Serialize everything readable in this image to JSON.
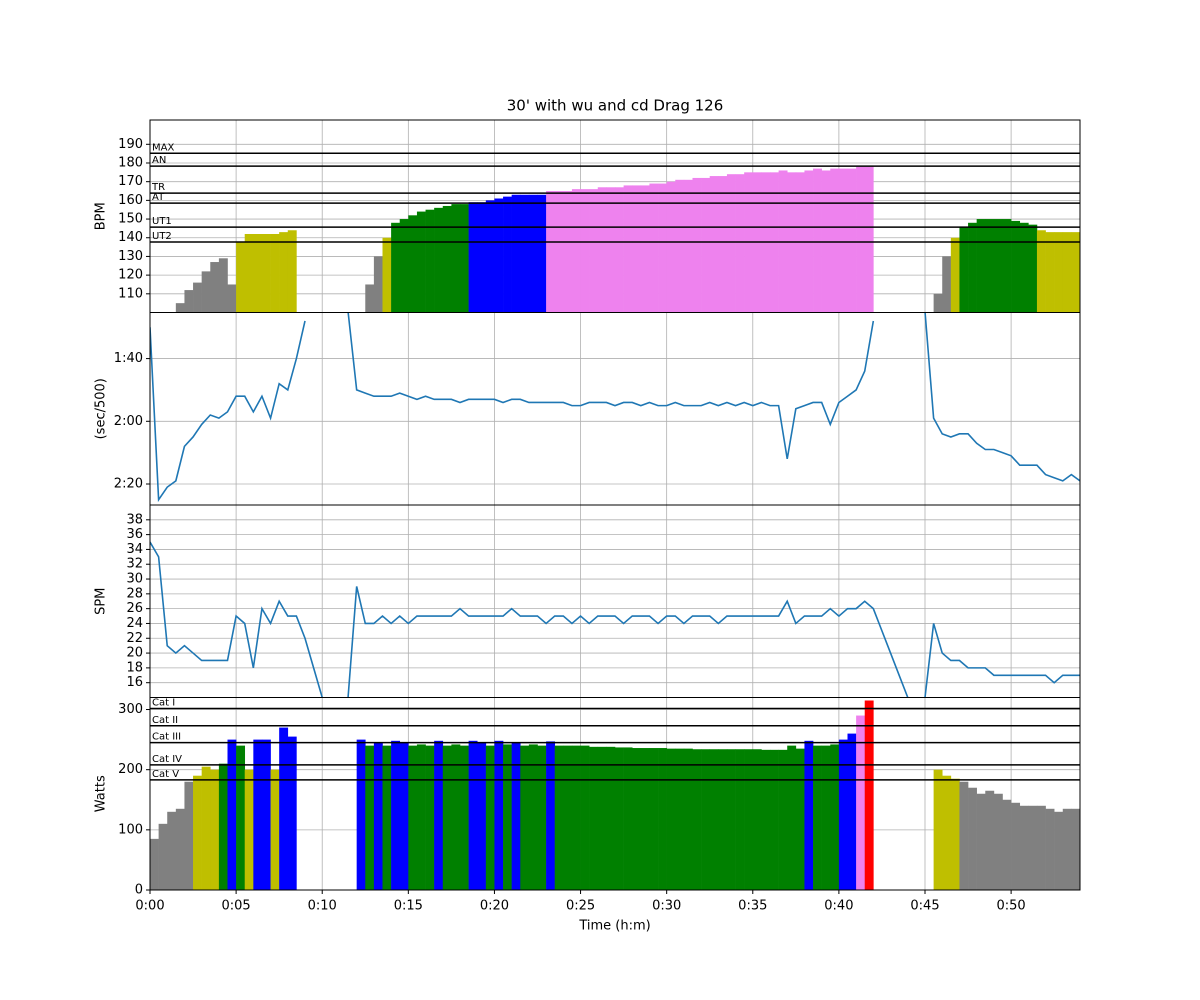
{
  "chart_data": {
    "type": "multi",
    "title": "30' with wu and cd Drag 126",
    "xlabel": "Time (h:m)",
    "xlim": [
      0,
      54
    ],
    "xticks": [
      {
        "value": 0,
        "label": "0:00"
      },
      {
        "value": 5,
        "label": "0:05"
      },
      {
        "value": 10,
        "label": "0:10"
      },
      {
        "value": 15,
        "label": "0:15"
      },
      {
        "value": 20,
        "label": "0:20"
      },
      {
        "value": 25,
        "label": "0:25"
      },
      {
        "value": 30,
        "label": "0:30"
      },
      {
        "value": 35,
        "label": "0:35"
      },
      {
        "value": 40,
        "label": "0:40"
      },
      {
        "value": 45,
        "label": "0:45"
      },
      {
        "value": 50,
        "label": "0:50"
      }
    ],
    "grid": true,
    "x": [
      0,
      0.5,
      1,
      1.5,
      2,
      2.5,
      3,
      3.5,
      4,
      4.5,
      5,
      5.5,
      6,
      6.5,
      7,
      7.5,
      8,
      8.5,
      9,
      9.5,
      10,
      10.5,
      11,
      11.5,
      12,
      12.5,
      13,
      13.5,
      14,
      14.5,
      15,
      15.5,
      16,
      16.5,
      17,
      17.5,
      18,
      18.5,
      19,
      19.5,
      20,
      20.5,
      21,
      21.5,
      22,
      22.5,
      23,
      23.5,
      24,
      24.5,
      25,
      25.5,
      26,
      26.5,
      27,
      27.5,
      28,
      28.5,
      29,
      29.5,
      30,
      30.5,
      31,
      31.5,
      32,
      32.5,
      33,
      33.5,
      34,
      34.5,
      35,
      35.5,
      36,
      36.5,
      37,
      37.5,
      38,
      38.5,
      39,
      39.5,
      40,
      40.5,
      41,
      41.5,
      42,
      42.5,
      43,
      43.5,
      44,
      44.5,
      45,
      45.5,
      46,
      46.5,
      47,
      47.5,
      48,
      48.5,
      49,
      49.5,
      50,
      50.5,
      51,
      51.5,
      52,
      52.5,
      53,
      53.5,
      54
    ],
    "panels": [
      {
        "type": "bar",
        "ylabel": "BPM",
        "ylim": [
          100,
          203
        ],
        "yticks": [
          110,
          120,
          130,
          140,
          150,
          160,
          170,
          180,
          190
        ],
        "zones": [
          {
            "label": "UT2",
            "value": 137.7
          },
          {
            "label": "UT1",
            "value": 145.7
          },
          {
            "label": "AT",
            "value": 158.5
          },
          {
            "label": "TR",
            "value": 163.9
          },
          {
            "label": "AN",
            "value": 178.3
          },
          {
            "label": "MAX",
            "value": 185.2
          }
        ],
        "zone_colors": [
          "#808080",
          "#bfbf00",
          "#008000",
          "#0000ff",
          "#ee82ee",
          "#ff0000",
          "#ff0000"
        ],
        "values": [
          null,
          null,
          null,
          105,
          112,
          116,
          122,
          127,
          129,
          115,
          138,
          142,
          142,
          142,
          142,
          143,
          144,
          null,
          null,
          null,
          null,
          null,
          null,
          null,
          null,
          115,
          130,
          140,
          148,
          150,
          152,
          154,
          155,
          156,
          157,
          158,
          158,
          159,
          159,
          160,
          161,
          162,
          163,
          163,
          163,
          163,
          165,
          165,
          165,
          166,
          166,
          166,
          167,
          167,
          167,
          168,
          168,
          168,
          169,
          169,
          170,
          171,
          171,
          172,
          172,
          173,
          173,
          174,
          174,
          175,
          175,
          175,
          175,
          176,
          175,
          175,
          176,
          177,
          176,
          177,
          177,
          177,
          178,
          178,
          null,
          null,
          null,
          null,
          null,
          null,
          null,
          110,
          130,
          140,
          146,
          148,
          150,
          150,
          150,
          150,
          149,
          148,
          147,
          144,
          143,
          143,
          143,
          143,
          143
        ]
      },
      {
        "type": "line",
        "ylabel": "(sec/500)",
        "color": "#1f77b4",
        "ylim": [
          146.7,
          85.3
        ],
        "yticks": [
          {
            "value": 100,
            "label": "1:40"
          },
          {
            "value": 120,
            "label": "2:00"
          },
          {
            "value": 140,
            "label": "2:20"
          }
        ],
        "values": [
          90,
          145,
          141,
          139,
          128,
          125,
          121,
          118,
          119,
          117,
          112,
          112,
          117,
          112,
          119,
          108,
          110,
          100,
          88,
          null,
          null,
          null,
          null,
          85,
          110,
          111,
          112,
          112,
          112,
          111,
          112,
          113,
          112,
          113,
          113,
          113,
          114,
          113,
          113,
          113,
          113,
          114,
          113,
          113,
          114,
          114,
          114,
          114,
          114,
          115,
          115,
          114,
          114,
          114,
          115,
          114,
          114,
          115,
          114,
          115,
          115,
          114,
          115,
          115,
          115,
          114,
          115,
          114,
          115,
          114,
          115,
          114,
          115,
          115,
          132,
          116,
          115,
          114,
          114,
          121,
          114,
          112,
          110,
          104,
          88,
          null,
          null,
          null,
          null,
          null,
          85,
          119,
          124,
          125,
          124,
          124,
          127,
          129,
          129,
          130,
          131,
          134,
          134,
          134,
          137,
          138,
          139,
          137,
          139
        ]
      },
      {
        "type": "line",
        "ylabel": "SPM",
        "color": "#1f77b4",
        "ylim": [
          14,
          40
        ],
        "yticks": [
          16,
          18,
          20,
          22,
          24,
          26,
          28,
          30,
          32,
          34,
          36,
          38
        ],
        "values": [
          35,
          33,
          21,
          20,
          21,
          20,
          19,
          19,
          19,
          19,
          25,
          24,
          18,
          26,
          24,
          27,
          25,
          25,
          22,
          18,
          14,
          null,
          null,
          14,
          29,
          24,
          24,
          25,
          24,
          25,
          24,
          25,
          25,
          25,
          25,
          25,
          26,
          25,
          25,
          25,
          25,
          25,
          26,
          25,
          25,
          25,
          24,
          25,
          25,
          24,
          25,
          24,
          25,
          25,
          25,
          24,
          25,
          25,
          25,
          24,
          25,
          25,
          24,
          25,
          25,
          25,
          24,
          25,
          25,
          25,
          25,
          25,
          25,
          25,
          27,
          24,
          25,
          25,
          25,
          26,
          25,
          26,
          26,
          27,
          26,
          23,
          20,
          17,
          14,
          null,
          14,
          24,
          20,
          19,
          19,
          18,
          18,
          18,
          17,
          17,
          17,
          17,
          17,
          17,
          17,
          16,
          17,
          17,
          17
        ]
      },
      {
        "type": "bar",
        "ylabel": "Watts",
        "ylim": [
          0,
          320
        ],
        "yticks": [
          0,
          100,
          200,
          300
        ],
        "zones": [
          {
            "label": "Cat V",
            "value": 183
          },
          {
            "label": "Cat IV",
            "value": 208
          },
          {
            "label": "Cat III",
            "value": 245
          },
          {
            "label": "Cat II",
            "value": 273
          },
          {
            "label": "Cat I",
            "value": 301.7
          }
        ],
        "zone_colors": [
          "#808080",
          "#bfbf00",
          "#008000",
          "#0000ff",
          "#ee82ee",
          "#ff0000"
        ],
        "values": [
          85,
          110,
          130,
          135,
          180,
          190,
          205,
          200,
          210,
          250,
          240,
          200,
          250,
          250,
          200,
          270,
          255,
          null,
          null,
          null,
          null,
          null,
          null,
          null,
          250,
          240,
          245,
          240,
          248,
          246,
          240,
          242,
          240,
          248,
          240,
          242,
          240,
          248,
          246,
          240,
          248,
          242,
          246,
          240,
          242,
          240,
          247,
          240,
          240,
          240,
          240,
          238,
          238,
          238,
          237,
          237,
          236,
          236,
          236,
          236,
          235,
          235,
          235,
          234,
          234,
          234,
          234,
          234,
          234,
          234,
          234,
          233,
          233,
          233,
          240,
          235,
          248,
          240,
          240,
          242,
          250,
          260,
          290,
          315,
          null,
          null,
          null,
          null,
          null,
          null,
          null,
          200,
          190,
          185,
          180,
          170,
          160,
          165,
          160,
          150,
          145,
          140,
          140,
          140,
          135,
          130,
          135,
          135,
          130
        ]
      }
    ]
  }
}
